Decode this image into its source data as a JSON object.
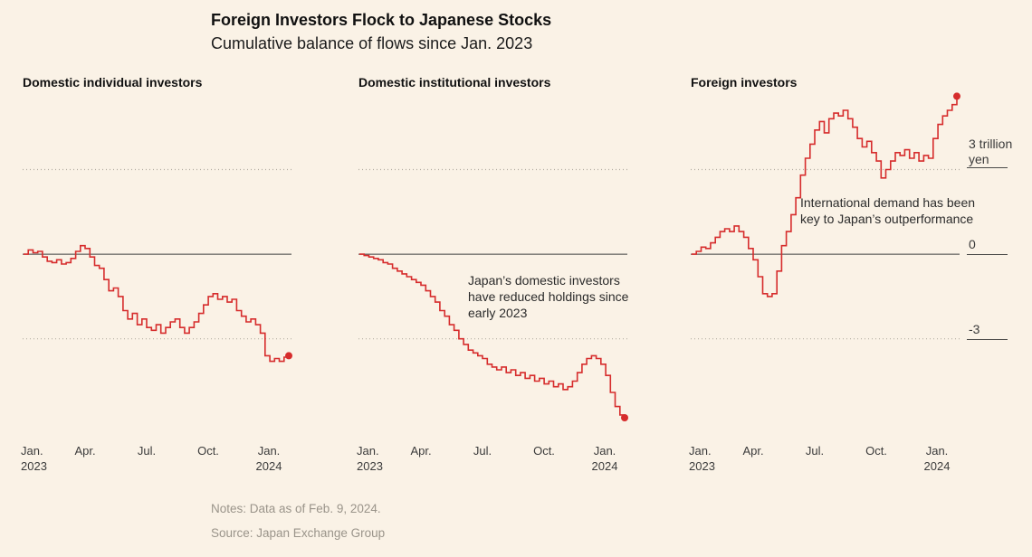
{
  "header": {
    "title": "Foreign Investors Flock to Japanese Stocks",
    "subtitle": "Cumulative balance of flows since Jan. 2023"
  },
  "panels": [
    {
      "title": "Domestic individual investors",
      "annotation": ""
    },
    {
      "title": "Domestic institutional investors",
      "annotation": "Japan’s domestic investors have reduced holdings since early 2023"
    },
    {
      "title": "Foreign investors",
      "annotation": "International demand has been key to Japan’s outperformance"
    }
  ],
  "x_axis": {
    "ticks": [
      "Jan.",
      "Apr.",
      "Jul.",
      "Oct.",
      "Jan."
    ],
    "start_year": "2023",
    "end_year": "2024"
  },
  "y_axis": {
    "top_label": "3 trillion yen",
    "zero_label": "0",
    "bottom_label": "-3"
  },
  "footer": {
    "notes": "Notes: Data as of Feb. 9, 2024.",
    "source": "Source: Japan Exchange Group"
  },
  "colors": {
    "line": "#d62c2c",
    "zero_line": "#3f3f3f",
    "gridline": "#b3ada2",
    "background": "#faf2e6"
  },
  "chart_data": {
    "type": "line",
    "style": "step",
    "title": "Foreign Investors Flock to Japanese Stocks",
    "subtitle": "Cumulative balance of flows since Jan. 2023",
    "unit": "trillion yen",
    "x": "weekly cumulative flows, Jan. 2023 through Feb. 9, 2024 (57 points per series)",
    "x_ticks": [
      "Jan. 2023",
      "Apr.",
      "Jul.",
      "Oct.",
      "Jan. 2024"
    ],
    "x_tick_indices": [
      0,
      13,
      26,
      39,
      52
    ],
    "ylim": [
      -6.6,
      5.9
    ],
    "y_gridlines": [
      3,
      0,
      -3
    ],
    "legend_position": "none",
    "series": [
      {
        "name": "Domestic individual investors",
        "values": [
          0.0,
          0.15,
          0.05,
          0.1,
          -0.1,
          -0.25,
          -0.3,
          -0.2,
          -0.35,
          -0.3,
          -0.15,
          0.1,
          0.3,
          0.2,
          -0.1,
          -0.4,
          -0.5,
          -0.9,
          -1.3,
          -1.2,
          -1.5,
          -2.0,
          -2.3,
          -2.1,
          -2.5,
          -2.3,
          -2.6,
          -2.7,
          -2.5,
          -2.8,
          -2.6,
          -2.4,
          -2.3,
          -2.6,
          -2.8,
          -2.6,
          -2.4,
          -2.1,
          -1.8,
          -1.5,
          -1.4,
          -1.6,
          -1.5,
          -1.7,
          -1.6,
          -2.0,
          -2.2,
          -2.4,
          -2.3,
          -2.5,
          -2.8,
          -3.6,
          -3.8,
          -3.7,
          -3.8,
          -3.65,
          -3.6
        ]
      },
      {
        "name": "Domestic institutional investors",
        "values": [
          0.0,
          -0.05,
          -0.1,
          -0.15,
          -0.2,
          -0.3,
          -0.35,
          -0.5,
          -0.6,
          -0.7,
          -0.8,
          -0.9,
          -1.0,
          -1.1,
          -1.3,
          -1.5,
          -1.7,
          -2.0,
          -2.2,
          -2.5,
          -2.7,
          -3.0,
          -3.2,
          -3.4,
          -3.5,
          -3.6,
          -3.7,
          -3.9,
          -4.0,
          -4.1,
          -4.0,
          -4.2,
          -4.1,
          -4.3,
          -4.2,
          -4.4,
          -4.3,
          -4.5,
          -4.4,
          -4.6,
          -4.5,
          -4.7,
          -4.6,
          -4.8,
          -4.7,
          -4.5,
          -4.2,
          -3.9,
          -3.7,
          -3.6,
          -3.7,
          -3.9,
          -4.3,
          -4.9,
          -5.4,
          -5.7,
          -5.8
        ]
      },
      {
        "name": "Foreign investors",
        "values": [
          0.0,
          0.1,
          0.25,
          0.2,
          0.4,
          0.6,
          0.8,
          0.9,
          0.8,
          1.0,
          0.8,
          0.6,
          0.2,
          -0.2,
          -0.8,
          -1.4,
          -1.5,
          -1.4,
          -0.6,
          0.3,
          0.8,
          1.4,
          2.0,
          2.8,
          3.4,
          3.9,
          4.4,
          4.7,
          4.3,
          4.8,
          5.0,
          4.9,
          5.1,
          4.8,
          4.5,
          4.1,
          3.8,
          4.0,
          3.6,
          3.3,
          2.7,
          3.0,
          3.3,
          3.6,
          3.5,
          3.7,
          3.4,
          3.6,
          3.3,
          3.5,
          3.4,
          4.1,
          4.6,
          4.9,
          5.1,
          5.3,
          5.6
        ]
      }
    ]
  }
}
